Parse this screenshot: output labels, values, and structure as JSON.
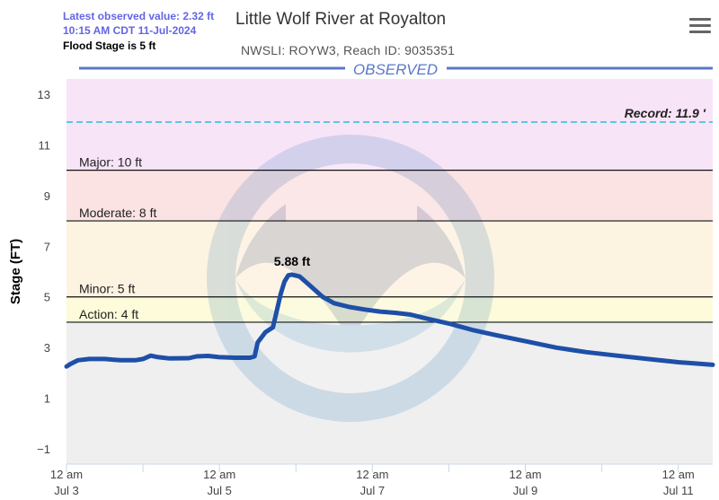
{
  "info": {
    "latest_value": "Latest observed value: 2.32 ft",
    "latest_time": "10:15 AM CDT 11-Jul-2024",
    "flood_stage": "Flood Stage is 5 ft"
  },
  "header": {
    "title": "Little Wolf River at Royalton",
    "subtitle": "NWSLI: ROYW3, Reach ID: 9035351",
    "observed_label": "OBSERVED"
  },
  "menu": {
    "icon": "hamburger-menu-icon"
  },
  "colors": {
    "line": "#1e4fa8",
    "record_band": "#f7e4f7",
    "major_band": "#fbe3e3",
    "moderate_band": "#fdf3e1",
    "minor_band": "#fdfbd9",
    "normal_band": "#efefef",
    "record_line": "#5cc8e0",
    "observed_label": "#5a78c8"
  },
  "chart_data": {
    "type": "line",
    "ylabel": "Stage (FT)",
    "ylim": [
      -1.6,
      13.6
    ],
    "yticks": [
      "−1",
      "1",
      "3",
      "5",
      "7",
      "9",
      "11",
      "13"
    ],
    "ytick_values": [
      -1,
      1,
      3,
      5,
      7,
      9,
      11,
      13
    ],
    "xlim": [
      0,
      8.45
    ],
    "xticks": [
      {
        "x": 0,
        "line1": "12 am",
        "line2": "Jul 3"
      },
      {
        "x": 2,
        "line1": "12 am",
        "line2": "Jul 5"
      },
      {
        "x": 4,
        "line1": "12 am",
        "line2": "Jul 7"
      },
      {
        "x": 6,
        "line1": "12 am",
        "line2": "Jul 9"
      },
      {
        "x": 8,
        "line1": "12 am",
        "line2": "Jul 11"
      }
    ],
    "minor_xticks": [
      1,
      3,
      5,
      7
    ],
    "thresholds": [
      {
        "name": "Record",
        "label": "Record: 11.9 '",
        "value": 11.9
      },
      {
        "name": "Major",
        "label": "Major: 10 ft",
        "value": 10
      },
      {
        "name": "Moderate",
        "label": "Moderate: 8 ft",
        "value": 8
      },
      {
        "name": "Minor",
        "label": "Minor: 5 ft",
        "value": 5
      },
      {
        "name": "Action",
        "label": "Action: 4 ft",
        "value": 4
      }
    ],
    "peak": {
      "x": 2.95,
      "y": 5.88,
      "label": "5.88 ft"
    },
    "series": [
      {
        "values": [
          [
            -0.08,
            2.25
          ],
          [
            0.05,
            2.35
          ],
          [
            0.15,
            2.5
          ],
          [
            0.3,
            2.55
          ],
          [
            0.5,
            2.55
          ],
          [
            0.7,
            2.5
          ],
          [
            0.9,
            2.5
          ],
          [
            1.0,
            2.55
          ],
          [
            1.1,
            2.68
          ],
          [
            1.2,
            2.62
          ],
          [
            1.35,
            2.57
          ],
          [
            1.6,
            2.58
          ],
          [
            1.7,
            2.65
          ],
          [
            1.85,
            2.67
          ],
          [
            2.0,
            2.62
          ],
          [
            2.2,
            2.6
          ],
          [
            2.4,
            2.6
          ],
          [
            2.46,
            2.65
          ],
          [
            2.5,
            3.2
          ],
          [
            2.6,
            3.6
          ],
          [
            2.7,
            3.8
          ],
          [
            2.8,
            5.1
          ],
          [
            2.85,
            5.6
          ],
          [
            2.9,
            5.85
          ],
          [
            2.95,
            5.88
          ],
          [
            3.05,
            5.8
          ],
          [
            3.2,
            5.4
          ],
          [
            3.35,
            5.0
          ],
          [
            3.5,
            4.75
          ],
          [
            3.7,
            4.6
          ],
          [
            3.9,
            4.5
          ],
          [
            4.1,
            4.42
          ],
          [
            4.3,
            4.37
          ],
          [
            4.5,
            4.3
          ],
          [
            4.7,
            4.15
          ],
          [
            5.0,
            3.95
          ],
          [
            5.3,
            3.7
          ],
          [
            5.6,
            3.5
          ],
          [
            6.0,
            3.25
          ],
          [
            6.4,
            3.0
          ],
          [
            6.8,
            2.82
          ],
          [
            7.2,
            2.68
          ],
          [
            7.6,
            2.55
          ],
          [
            8.0,
            2.42
          ],
          [
            8.45,
            2.32
          ]
        ]
      }
    ]
  }
}
